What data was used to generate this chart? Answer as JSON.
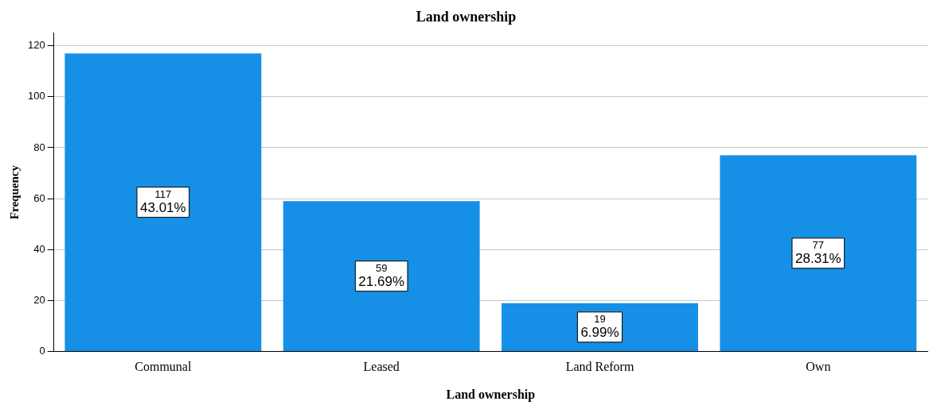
{
  "chart_data": {
    "type": "bar",
    "title": "Land ownership",
    "xlabel": "Land ownership",
    "ylabel": "Frequency",
    "categories": [
      "Communal",
      "Leased",
      "Land Reform",
      "Own"
    ],
    "values": [
      117,
      59,
      19,
      77
    ],
    "value_labels": [
      "117\n43.01%",
      "59\n21.69%",
      "19\n6.99%",
      "77\n28.31%"
    ],
    "color": "#1690e6",
    "ylim": [
      0,
      125
    ],
    "yticks": [
      0,
      20,
      40,
      60,
      80,
      100,
      120
    ],
    "grid": "y",
    "legend": false
  }
}
